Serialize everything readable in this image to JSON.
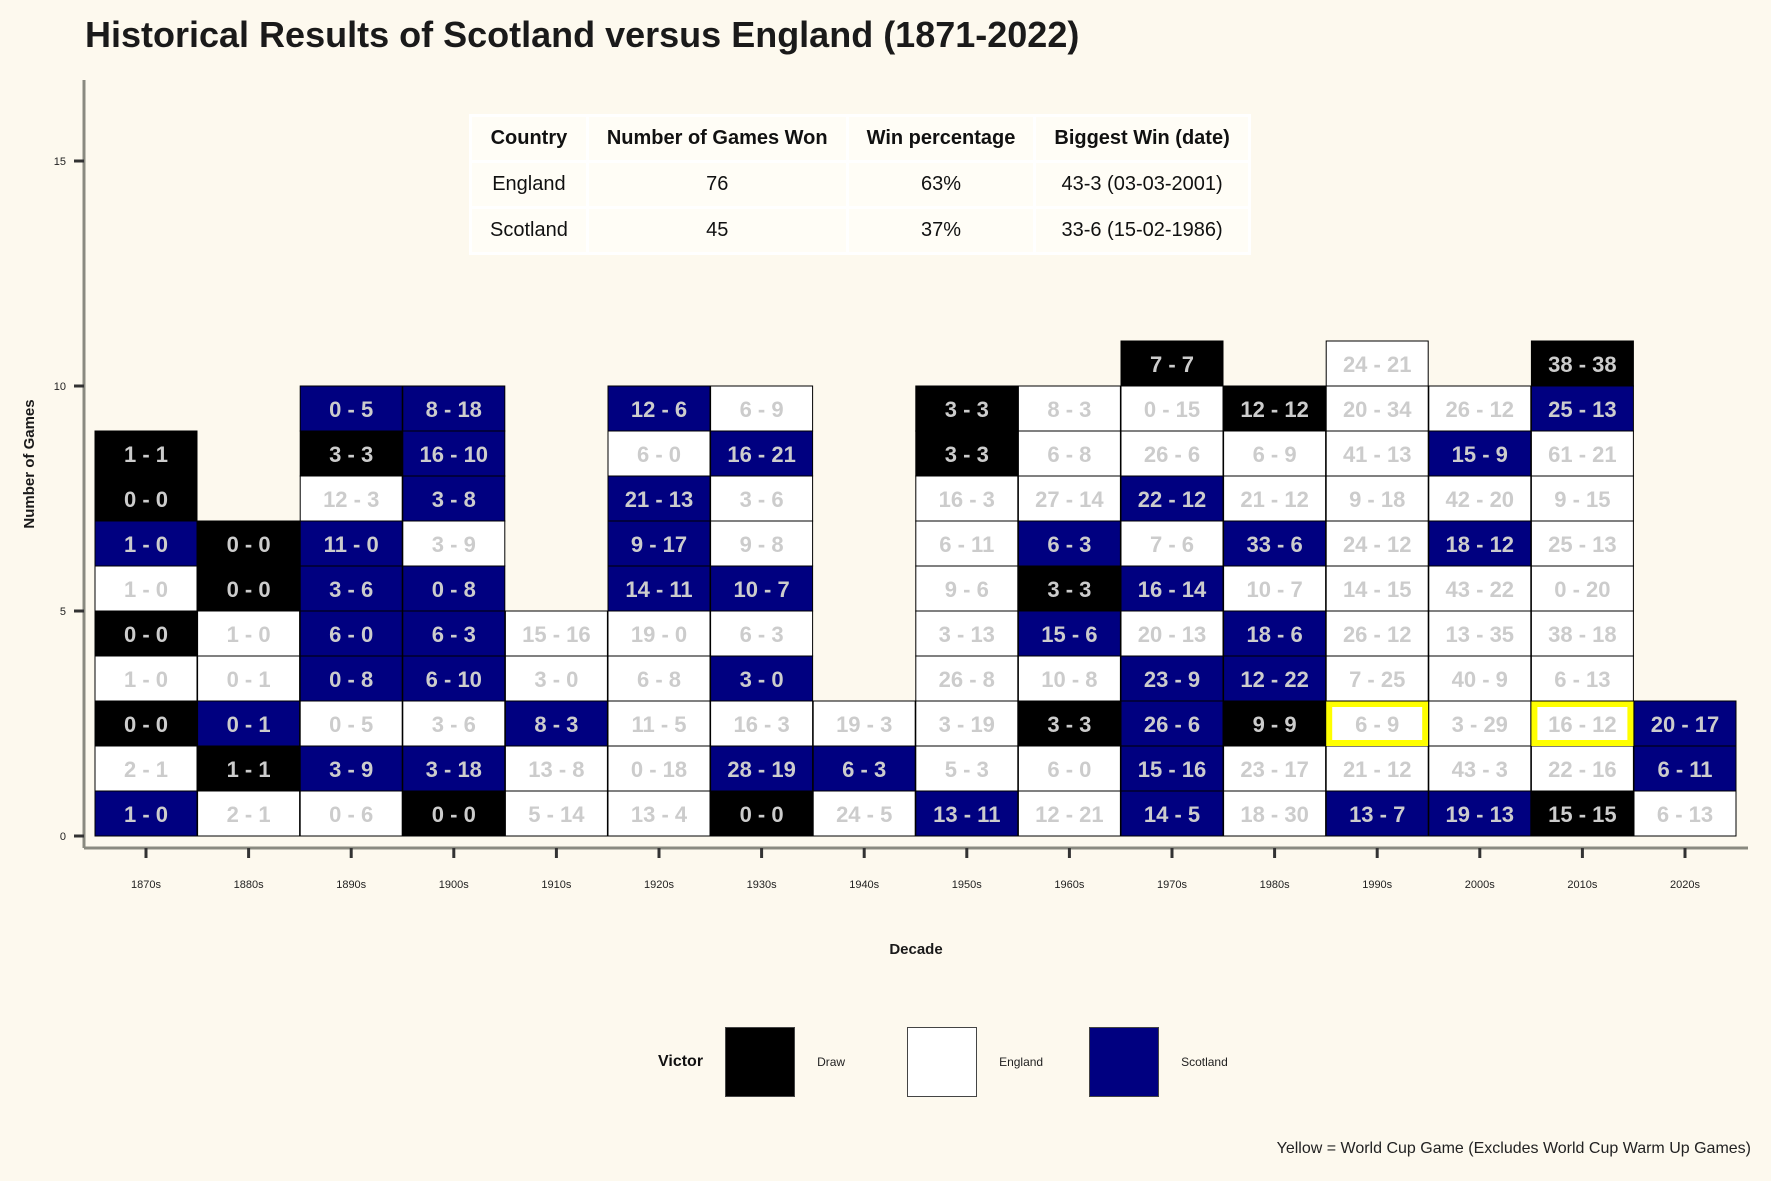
{
  "title": "Historical Results of Scotland versus England (1871-2022)",
  "summary_table": {
    "headers": [
      "Country",
      "Number of Games Won",
      "Win percentage",
      "Biggest Win (date)"
    ],
    "rows": [
      [
        "England",
        "76",
        "63%",
        "43-3 (03-03-2001)"
      ],
      [
        "Scotland",
        "45",
        "37%",
        "33-6 (15-02-1986)"
      ]
    ]
  },
  "legend": {
    "title": "Victor",
    "items": [
      {
        "label": "Draw",
        "color": "#000000"
      },
      {
        "label": "England",
        "color": "#ffffff"
      },
      {
        "label": "Scotland",
        "color": "#000080"
      }
    ]
  },
  "caption": "Yellow = World Cup Game (Excludes World Cup Warm Up Games)",
  "colors": {
    "draw": "#000000",
    "england": "#ffffff",
    "scotland": "#000080",
    "highlight": "#ffff00",
    "background": "#fdf9ee",
    "text_on_dark": "#cccccc",
    "text_on_light": "#cccccc"
  },
  "chart_data": {
    "type": "stacked tile chart",
    "xlabel": "Decade",
    "ylabel": "Number of Games",
    "ylim": [
      0,
      16
    ],
    "yticks": [
      0,
      5,
      10,
      15
    ],
    "categories": [
      "1870s",
      "1880s",
      "1890s",
      "1900s",
      "1910s",
      "1920s",
      "1930s",
      "1940s",
      "1950s",
      "1960s",
      "1970s",
      "1980s",
      "1990s",
      "2000s",
      "2010s",
      "2020s"
    ],
    "games": [
      [
        [
          "1 - 0",
          "S",
          0
        ],
        [
          "2 - 1",
          "E",
          0
        ],
        [
          "0 - 0",
          "D",
          0
        ],
        [
          "1 - 0",
          "E",
          0
        ],
        [
          "0 - 0",
          "D",
          0
        ],
        [
          "1 - 0",
          "E",
          0
        ],
        [
          "1 - 0",
          "S",
          0
        ],
        [
          "0 - 0",
          "D",
          0
        ],
        [
          "1 - 1",
          "D",
          0
        ]
      ],
      [
        [
          "2 - 1",
          "E",
          0
        ],
        [
          "1 - 1",
          "D",
          0
        ],
        [
          "0 - 1",
          "S",
          0
        ],
        [
          "0 - 1",
          "E",
          0
        ],
        [
          "1 - 0",
          "E",
          0
        ],
        [
          "0 - 0",
          "D",
          0
        ],
        [
          "0 - 0",
          "D",
          0
        ]
      ],
      [
        [
          "0 - 6",
          "E",
          0
        ],
        [
          "3 - 9",
          "S",
          0
        ],
        [
          "0 - 5",
          "E",
          0
        ],
        [
          "0 - 8",
          "S",
          0
        ],
        [
          "6 - 0",
          "S",
          0
        ],
        [
          "3 - 6",
          "S",
          0
        ],
        [
          "11 - 0",
          "S",
          0
        ],
        [
          "12 - 3",
          "E",
          0
        ],
        [
          "3 - 3",
          "D",
          0
        ],
        [
          "0 - 5",
          "S",
          0
        ]
      ],
      [
        [
          "0 - 0",
          "D",
          0
        ],
        [
          "3 - 18",
          "S",
          0
        ],
        [
          "3 - 6",
          "E",
          0
        ],
        [
          "6 - 10",
          "S",
          0
        ],
        [
          "6 - 3",
          "S",
          0
        ],
        [
          "0 - 8",
          "S",
          0
        ],
        [
          "3 - 9",
          "E",
          0
        ],
        [
          "3 - 8",
          "S",
          0
        ],
        [
          "16 - 10",
          "S",
          0
        ],
        [
          "8 - 18",
          "S",
          0
        ]
      ],
      [
        [
          "5 - 14",
          "E",
          0
        ],
        [
          "13 - 8",
          "E",
          0
        ],
        [
          "8 - 3",
          "S",
          0
        ],
        [
          "3 - 0",
          "E",
          0
        ],
        [
          "15 - 16",
          "E",
          0
        ]
      ],
      [
        [
          "13 - 4",
          "E",
          0
        ],
        [
          "0 - 18",
          "E",
          0
        ],
        [
          "11 - 5",
          "E",
          0
        ],
        [
          "6 - 8",
          "E",
          0
        ],
        [
          "19 - 0",
          "E",
          0
        ],
        [
          "14 - 11",
          "S",
          0
        ],
        [
          "9 - 17",
          "S",
          0
        ],
        [
          "21 - 13",
          "S",
          0
        ],
        [
          "6 - 0",
          "E",
          0
        ],
        [
          "12 - 6",
          "S",
          0
        ]
      ],
      [
        [
          "0 - 0",
          "D",
          0
        ],
        [
          "28 - 19",
          "S",
          0
        ],
        [
          "16 - 3",
          "E",
          0
        ],
        [
          "3 - 0",
          "S",
          0
        ],
        [
          "6 - 3",
          "E",
          0
        ],
        [
          "10 - 7",
          "S",
          0
        ],
        [
          "9 - 8",
          "E",
          0
        ],
        [
          "3 - 6",
          "E",
          0
        ],
        [
          "16 - 21",
          "S",
          0
        ],
        [
          "6 - 9",
          "E",
          0
        ]
      ],
      [
        [
          "24 - 5",
          "E",
          0
        ],
        [
          "6 - 3",
          "S",
          0
        ],
        [
          "19 - 3",
          "E",
          0
        ]
      ],
      [
        [
          "13 - 11",
          "S",
          0
        ],
        [
          "5 - 3",
          "E",
          0
        ],
        [
          "3 - 19",
          "E",
          0
        ],
        [
          "26 - 8",
          "E",
          0
        ],
        [
          "3 - 13",
          "E",
          0
        ],
        [
          "9 - 6",
          "E",
          0
        ],
        [
          "6 - 11",
          "E",
          0
        ],
        [
          "16 - 3",
          "E",
          0
        ],
        [
          "3 - 3",
          "D",
          0
        ],
        [
          "3 - 3",
          "D",
          0
        ]
      ],
      [
        [
          "12 - 21",
          "E",
          0
        ],
        [
          "6 - 0",
          "E",
          0
        ],
        [
          "3 - 3",
          "D",
          0
        ],
        [
          "10 - 8",
          "E",
          0
        ],
        [
          "15 - 6",
          "S",
          0
        ],
        [
          "3 - 3",
          "D",
          0
        ],
        [
          "6 - 3",
          "S",
          0
        ],
        [
          "27 - 14",
          "E",
          0
        ],
        [
          "6 - 8",
          "E",
          0
        ],
        [
          "8 - 3",
          "E",
          0
        ]
      ],
      [
        [
          "14 - 5",
          "S",
          0
        ],
        [
          "15 - 16",
          "S",
          0
        ],
        [
          "26 - 6",
          "S",
          0
        ],
        [
          "23 - 9",
          "S",
          0
        ],
        [
          "20 - 13",
          "E",
          0
        ],
        [
          "16 - 14",
          "S",
          0
        ],
        [
          "7 - 6",
          "E",
          0
        ],
        [
          "22 - 12",
          "S",
          0
        ],
        [
          "26 - 6",
          "E",
          0
        ],
        [
          "0 - 15",
          "E",
          0
        ],
        [
          "7 - 7",
          "D",
          0
        ]
      ],
      [
        [
          "18 - 30",
          "E",
          0
        ],
        [
          "23 - 17",
          "E",
          0
        ],
        [
          "9 - 9",
          "D",
          0
        ],
        [
          "12 - 22",
          "S",
          0
        ],
        [
          "18 - 6",
          "S",
          0
        ],
        [
          "10 - 7",
          "E",
          0
        ],
        [
          "33 - 6",
          "S",
          0
        ],
        [
          "21 - 12",
          "E",
          0
        ],
        [
          "6 - 9",
          "E",
          0
        ],
        [
          "12 - 12",
          "D",
          0
        ]
      ],
      [
        [
          "13 - 7",
          "S",
          0
        ],
        [
          "21 - 12",
          "E",
          0
        ],
        [
          "6 - 9",
          "E",
          1
        ],
        [
          "7 - 25",
          "E",
          0
        ],
        [
          "26 - 12",
          "E",
          0
        ],
        [
          "14 - 15",
          "E",
          0
        ],
        [
          "24 - 12",
          "E",
          0
        ],
        [
          "9 - 18",
          "E",
          0
        ],
        [
          "41 - 13",
          "E",
          0
        ],
        [
          "20 - 34",
          "E",
          0
        ],
        [
          "24 - 21",
          "E",
          0
        ]
      ],
      [
        [
          "19 - 13",
          "S",
          0
        ],
        [
          "43 - 3",
          "E",
          0
        ],
        [
          "3 - 29",
          "E",
          0
        ],
        [
          "40 - 9",
          "E",
          0
        ],
        [
          "13 - 35",
          "E",
          0
        ],
        [
          "43 - 22",
          "E",
          0
        ],
        [
          "18 - 12",
          "S",
          0
        ],
        [
          "42 - 20",
          "E",
          0
        ],
        [
          "15 - 9",
          "S",
          0
        ],
        [
          "26 - 12",
          "E",
          0
        ]
      ],
      [
        [
          "15 - 15",
          "D",
          0
        ],
        [
          "22 - 16",
          "E",
          0
        ],
        [
          "16 - 12",
          "E",
          1
        ],
        [
          "6 - 13",
          "E",
          0
        ],
        [
          "38 - 18",
          "E",
          0
        ],
        [
          "0 - 20",
          "E",
          0
        ],
        [
          "25 - 13",
          "E",
          0
        ],
        [
          "9 - 15",
          "E",
          0
        ],
        [
          "61 - 21",
          "E",
          0
        ],
        [
          "25 - 13",
          "S",
          0
        ],
        [
          "38 - 38",
          "D",
          0
        ]
      ],
      [
        [
          "6 - 13",
          "E",
          0
        ],
        [
          "6 - 11",
          "S",
          0
        ],
        [
          "20 - 17",
          "S",
          0
        ]
      ]
    ]
  }
}
